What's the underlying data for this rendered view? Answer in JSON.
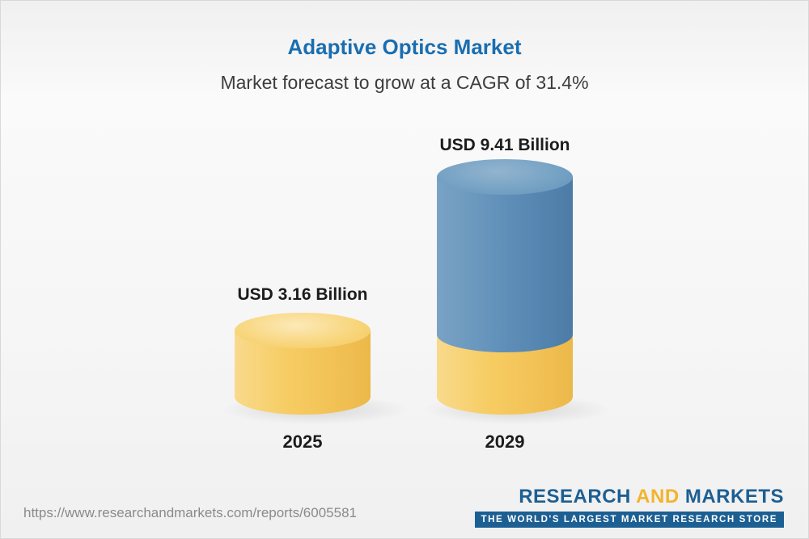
{
  "chart_data": {
    "type": "bar",
    "bar_style": "3d-cylinder",
    "title": "Adaptive Optics Market",
    "subtitle": "Market forecast to grow at a CAGR of 31.4%",
    "unit": "USD Billion",
    "cagr_percent": 31.4,
    "categories": [
      "2025",
      "2029"
    ],
    "values": [
      3.16,
      9.41
    ],
    "legend": "none",
    "grid": false,
    "bars": [
      {
        "year": "2025",
        "value": 3.16,
        "label": "USD 3.16 Billion",
        "color": "#F6CB60"
      },
      {
        "year": "2029",
        "value": 9.41,
        "label": "USD 9.41 Billion",
        "color_top_segment": "#5D8EB8",
        "color_base_segment": "#F6CB60"
      }
    ]
  },
  "footer": {
    "url": "https://www.researchandmarkets.com/reports/6005581",
    "logo": {
      "research": "RESEARCH",
      "and": "AND",
      "markets": "MARKETS",
      "tagline": "THE WORLD'S LARGEST MARKET RESEARCH STORE"
    }
  },
  "colors": {
    "title_blue": "#1A6EB0",
    "subtitle_gray": "#3d3d3d",
    "bar_yellow": "#F6CB60",
    "bar_blue": "#5D8EB8",
    "logo_blue": "#1C5F93",
    "logo_yellow": "#F2B42D",
    "url_gray": "#8a8a8a"
  }
}
